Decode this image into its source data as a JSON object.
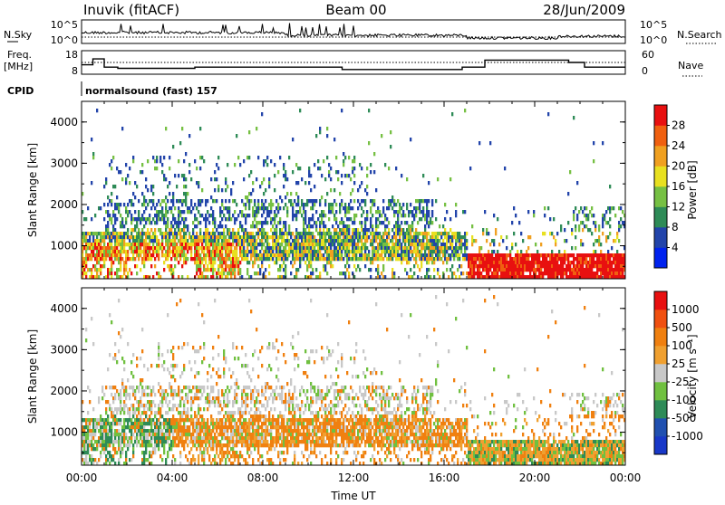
{
  "header": {
    "station": "Inuvik (fitACF)",
    "beam": "Beam 00",
    "date": "28/Jun/2009"
  },
  "colors": {
    "power": [
      "#0022ee",
      "#2244aa",
      "#2e8b57",
      "#76c043",
      "#e8e020",
      "#f0a020",
      "#f06010",
      "#e81010"
    ],
    "velocity": [
      "#e81010",
      "#f05010",
      "#f08010",
      "#f0a030",
      "#c8c8c8",
      "#70c040",
      "#2e8b57",
      "#2050b0",
      "#1838c8"
    ]
  },
  "chart_data": [
    {
      "type": "line",
      "panel": "noise",
      "left_label": "N.Sky",
      "right_label": "N.Search",
      "left_ticks": [
        "10^5",
        "10^0"
      ],
      "right_ticks": [
        "10^5",
        "10^0"
      ]
    },
    {
      "type": "line",
      "panel": "frequency",
      "left_label_1": "Freq.",
      "left_label_2": "[MHz]",
      "right_label": "Nave",
      "left_ticks": [
        "18",
        "8"
      ],
      "right_ticks": [
        "60",
        "0"
      ],
      "series": [
        {
          "name": "Freq.",
          "x": [
            0,
            0.5,
            1,
            1.6,
            4.5,
            5.0,
            10.3,
            11.5,
            14.0,
            16.8,
            17.8,
            21.5,
            22.2,
            24
          ],
          "values": [
            12,
            14.5,
            11,
            10.5,
            10.5,
            11,
            11,
            10,
            10,
            11,
            14,
            13,
            11,
            11
          ]
        },
        {
          "name": "Nave",
          "x": [
            0,
            24
          ],
          "values": [
            30,
            30
          ]
        }
      ]
    },
    {
      "type": "label",
      "panel": "cpid",
      "left_label": "CPID",
      "program": "normalsound (fast) 157"
    },
    {
      "type": "heatmap",
      "panel": "power",
      "ylabel": "Slant Range [km]",
      "yticks": [
        1000,
        2000,
        3000,
        4000
      ],
      "ylim": [
        200,
        4500
      ],
      "xlim": [
        0,
        24
      ],
      "colorbar_label": "Power [dB]",
      "colorbar_ticks": [
        "28",
        "24",
        "20",
        "16",
        "12",
        "8",
        "4"
      ]
    },
    {
      "type": "heatmap",
      "panel": "velocity",
      "ylabel": "Slant Range [km]",
      "yticks": [
        1000,
        2000,
        3000,
        4000
      ],
      "ylim": [
        200,
        4500
      ],
      "xlim": [
        0,
        24
      ],
      "xlabel": "Time UT",
      "xticks": [
        "00:00",
        "04:00",
        "08:00",
        "12:00",
        "16:00",
        "20:00",
        "00:00"
      ],
      "colorbar_label": "Velocity [m s⁻¹]",
      "colorbar_ticks": [
        "1000",
        "500",
        "100",
        "25",
        "-25",
        "-100",
        "-500",
        "-1000"
      ]
    }
  ]
}
